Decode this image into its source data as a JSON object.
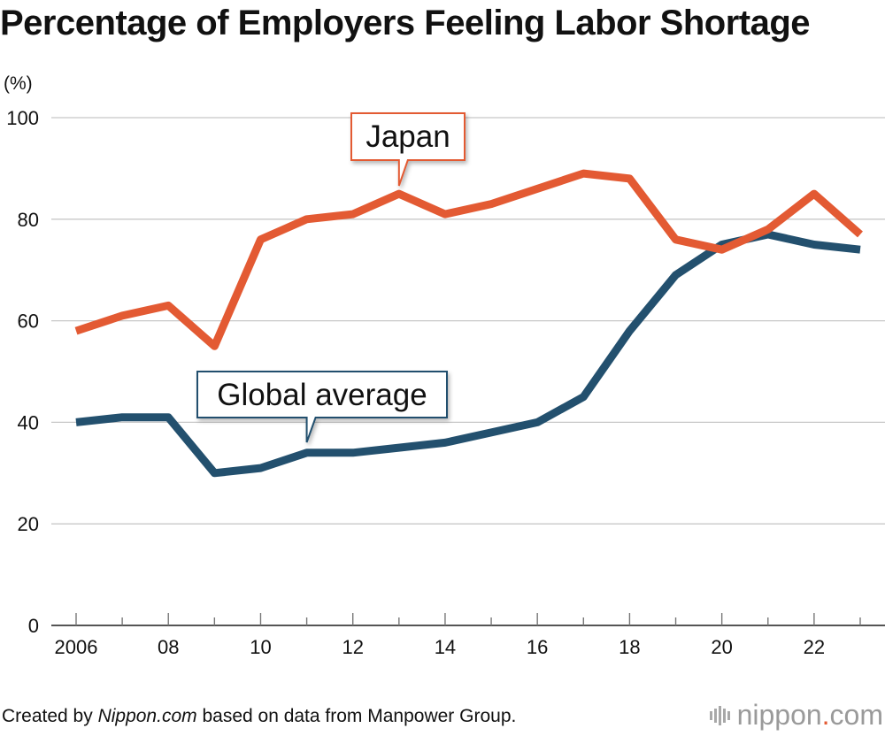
{
  "chart_data": {
    "type": "line",
    "title": "Percentage of Employers Feeling Labor Shortage",
    "ylabel": "(%)",
    "xlabel": "",
    "ylim": [
      0,
      100
    ],
    "yticks": [
      0,
      20,
      40,
      60,
      80,
      100
    ],
    "xlim": [
      2006,
      2023
    ],
    "xtick_labels": [
      "2006",
      "08",
      "10",
      "12",
      "14",
      "16",
      "18",
      "20",
      "22"
    ],
    "xtick_values": [
      2006,
      2008,
      2010,
      2012,
      2014,
      2016,
      2018,
      2020,
      2022
    ],
    "grid": true,
    "x": [
      2006,
      2007,
      2008,
      2009,
      2010,
      2011,
      2012,
      2013,
      2014,
      2015,
      2016,
      2017,
      2018,
      2019,
      2020,
      2021,
      2022,
      2023
    ],
    "series": [
      {
        "name": "Japan",
        "color": "#e35a33",
        "values": [
          58,
          61,
          63,
          55,
          76,
          80,
          81,
          85,
          81,
          83,
          86,
          89,
          88,
          76,
          74,
          78,
          85,
          77
        ]
      },
      {
        "name": "Global average",
        "color": "#23506e",
        "values": [
          40,
          41,
          41,
          30,
          31,
          34,
          34,
          35,
          36,
          38,
          40,
          45,
          58,
          69,
          75,
          77,
          75,
          74
        ]
      }
    ]
  },
  "footer": {
    "prefix": "Created by ",
    "source_italic": "Nippon.com",
    "suffix": " based on data from Manpower Group."
  },
  "brand": {
    "name_a": "nippon",
    "dot": ".",
    "name_b": "com",
    "accent_color": "#e35a33"
  }
}
